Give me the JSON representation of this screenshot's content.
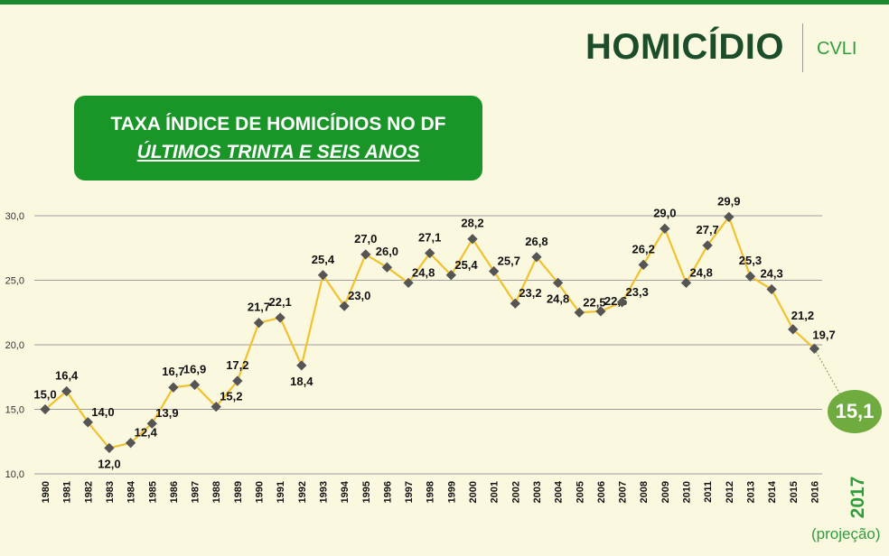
{
  "header": {
    "title": "HOMICÍDIO",
    "section": "CVLI"
  },
  "banner": {
    "line1": "TAXA ÍNDICE DE HOMICÍDIOS NO DF",
    "line2": "ÚLTIMOS TRINTA E SEIS ANOS"
  },
  "projection": {
    "value": "15,1",
    "year": "2017",
    "note": "(projeção)"
  },
  "colors": {
    "line": "#f2c12e",
    "marker": "#555555",
    "accent": "#1a9628",
    "bubble": "#6fab3e"
  },
  "chart_data": {
    "type": "line",
    "x": [
      "1980",
      "1981",
      "1982",
      "1983",
      "1984",
      "1985",
      "1986",
      "1987",
      "1988",
      "1989",
      "1990",
      "1991",
      "1992",
      "1993",
      "1994",
      "1995",
      "1996",
      "1997",
      "1998",
      "1999",
      "2000",
      "2001",
      "2002",
      "2003",
      "2004",
      "2005",
      "2006",
      "2007",
      "2008",
      "2009",
      "2010",
      "2011",
      "2012",
      "2013",
      "2014",
      "2015",
      "2016"
    ],
    "values": [
      15.0,
      16.4,
      14.0,
      12.0,
      12.4,
      13.9,
      16.7,
      16.9,
      15.2,
      17.2,
      21.7,
      22.1,
      18.4,
      25.4,
      23.0,
      27.0,
      26.0,
      24.8,
      27.1,
      25.4,
      28.2,
      25.7,
      23.2,
      26.8,
      24.8,
      22.5,
      22.6,
      23.3,
      26.2,
      29.0,
      24.8,
      27.7,
      29.9,
      25.3,
      24.3,
      21.2,
      19.7
    ],
    "data_labels": [
      "15,0",
      "16,4",
      "14,0",
      "12,0",
      "12,4",
      "13,9",
      "16,7",
      "16,9",
      "15,2",
      "17,2",
      "21,7",
      "22,1",
      "18,4",
      "25,4",
      "23,0",
      "27,0",
      "26,0",
      "24,8",
      "27,1",
      "25,4",
      "28,2",
      "25,7",
      "23,2",
      "26,8",
      "24,8",
      "22,5",
      "22,6",
      "23,3",
      "26,2",
      "29,0",
      "24,8",
      "27,7",
      "29,9",
      "25,3",
      "24,3",
      "21,2",
      "19,7"
    ],
    "y_ticks": [
      "10,0",
      "15,0",
      "20,0",
      "25,0",
      "30,0"
    ],
    "ylim": [
      10,
      30
    ],
    "projection": {
      "x": "2017",
      "value": 15.1
    },
    "grid": true,
    "legend": false,
    "title": "",
    "xlabel": "",
    "ylabel": ""
  }
}
